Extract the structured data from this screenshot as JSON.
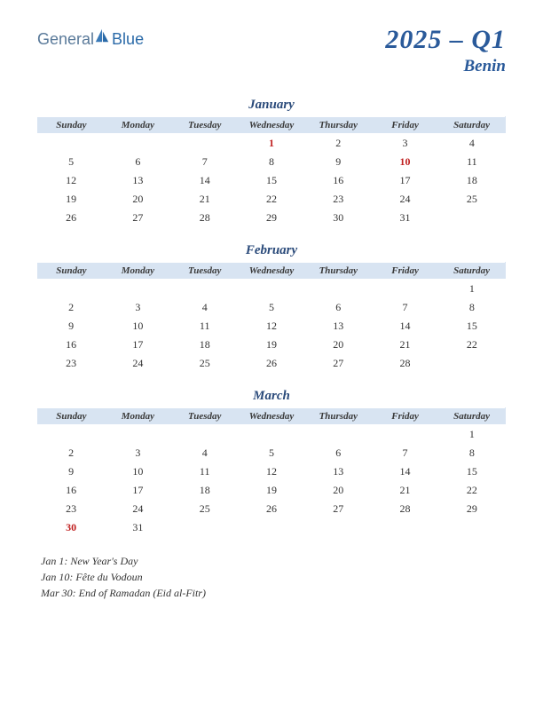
{
  "logo": {
    "part1": "General",
    "part2": "Blue"
  },
  "header": {
    "quarter": "2025 – Q1",
    "country": "Benin"
  },
  "colors": {
    "header_bg": "#d8e4f2",
    "title_color": "#2a5a9a",
    "holiday_color": "#c02020",
    "text_color": "#333333"
  },
  "day_headers": [
    "Sunday",
    "Monday",
    "Tuesday",
    "Wednesday",
    "Thursday",
    "Friday",
    "Saturday"
  ],
  "months": [
    {
      "name": "January",
      "weeks": [
        [
          "",
          "",
          "",
          "1",
          "2",
          "3",
          "4"
        ],
        [
          "5",
          "6",
          "7",
          "8",
          "9",
          "10",
          "11"
        ],
        [
          "12",
          "13",
          "14",
          "15",
          "16",
          "17",
          "18"
        ],
        [
          "19",
          "20",
          "21",
          "22",
          "23",
          "24",
          "25"
        ],
        [
          "26",
          "27",
          "28",
          "29",
          "30",
          "31",
          ""
        ]
      ],
      "holidays": [
        "1",
        "10"
      ]
    },
    {
      "name": "February",
      "weeks": [
        [
          "",
          "",
          "",
          "",
          "",
          "",
          "1"
        ],
        [
          "2",
          "3",
          "4",
          "5",
          "6",
          "7",
          "8"
        ],
        [
          "9",
          "10",
          "11",
          "12",
          "13",
          "14",
          "15"
        ],
        [
          "16",
          "17",
          "18",
          "19",
          "20",
          "21",
          "22"
        ],
        [
          "23",
          "24",
          "25",
          "26",
          "27",
          "28",
          ""
        ]
      ],
      "holidays": []
    },
    {
      "name": "March",
      "weeks": [
        [
          "",
          "",
          "",
          "",
          "",
          "",
          "1"
        ],
        [
          "2",
          "3",
          "4",
          "5",
          "6",
          "7",
          "8"
        ],
        [
          "9",
          "10",
          "11",
          "12",
          "13",
          "14",
          "15"
        ],
        [
          "16",
          "17",
          "18",
          "19",
          "20",
          "21",
          "22"
        ],
        [
          "23",
          "24",
          "25",
          "26",
          "27",
          "28",
          "29"
        ],
        [
          "30",
          "31",
          "",
          "",
          "",
          "",
          ""
        ]
      ],
      "holidays": [
        "30"
      ]
    }
  ],
  "holiday_notes": [
    "Jan 1: New Year's Day",
    "Jan 10: Fête du Vodoun",
    "Mar 30: End of Ramadan (Eid al-Fitr)"
  ]
}
